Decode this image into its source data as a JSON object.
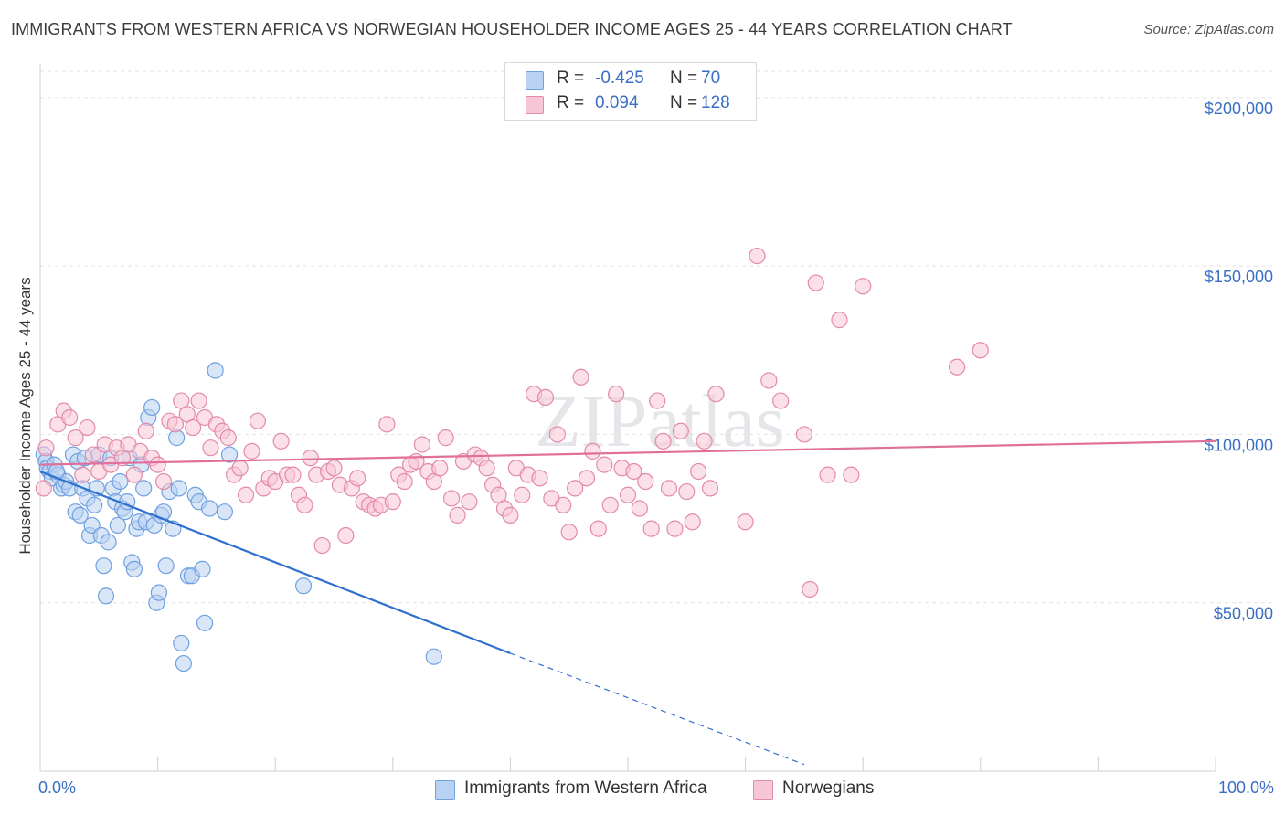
{
  "title": "IMMIGRANTS FROM WESTERN AFRICA VS NORWEGIAN HOUSEHOLDER INCOME AGES 25 - 44 YEARS CORRELATION CHART",
  "source": "Source: ZipAtlas.com",
  "watermark": "ZIPatlas",
  "colors": {
    "blue": "#6fa0e0",
    "blue_fill": "#b9d1f3",
    "blue_line": "#2f6fd0",
    "pink": "#e38aa8",
    "pink_fill": "#f7c6d6",
    "pink_line": "#e0709a",
    "tick_text": "#3a6fc4"
  },
  "legend": {
    "rows": [
      {
        "r_label": "R =",
        "r_value": "-0.425",
        "n_label": "N =",
        "n_value": "70"
      },
      {
        "r_label": "R =",
        "r_value": "0.094",
        "n_label": "N =",
        "n_value": "128"
      }
    ]
  },
  "chart_data": {
    "type": "scatter",
    "xlabel": "",
    "ylabel": "Householder Income Ages 25 - 44 years",
    "xlim": [
      0,
      100
    ],
    "ylim": [
      0,
      210000
    ],
    "x_tick_labels": [
      "0.0%",
      "100.0%"
    ],
    "y_ticks": [
      50000,
      100000,
      150000,
      200000
    ],
    "y_tick_labels": [
      "$50,000",
      "$100,000",
      "$150,000",
      "$200,000"
    ],
    "grid": true,
    "series": [
      {
        "name": "Immigrants from Western Africa",
        "color": "blue",
        "r": -0.425,
        "n": 70,
        "trend": {
          "x0": 0,
          "y0": 89000,
          "x1": 40,
          "y1": 35000,
          "dash_to_x": 65,
          "dash_to_y": 2000
        },
        "points": [
          [
            0.3,
            94000
          ],
          [
            0.5,
            92000
          ],
          [
            0.6,
            90000
          ],
          [
            0.8,
            89000
          ],
          [
            1.0,
            87000
          ],
          [
            1.2,
            91000
          ],
          [
            1.5,
            88000
          ],
          [
            1.8,
            84000
          ],
          [
            2.0,
            85000
          ],
          [
            2.2,
            86000
          ],
          [
            2.5,
            84000
          ],
          [
            2.8,
            94000
          ],
          [
            3.0,
            77000
          ],
          [
            3.2,
            92000
          ],
          [
            3.4,
            76000
          ],
          [
            3.6,
            84000
          ],
          [
            3.8,
            93000
          ],
          [
            4.0,
            81000
          ],
          [
            4.2,
            70000
          ],
          [
            4.4,
            73000
          ],
          [
            4.6,
            79000
          ],
          [
            4.8,
            84000
          ],
          [
            5.0,
            94000
          ],
          [
            5.2,
            70000
          ],
          [
            5.4,
            61000
          ],
          [
            5.6,
            52000
          ],
          [
            5.8,
            68000
          ],
          [
            6.0,
            93000
          ],
          [
            6.2,
            84000
          ],
          [
            6.4,
            80000
          ],
          [
            6.6,
            73000
          ],
          [
            6.8,
            86000
          ],
          [
            7.0,
            78000
          ],
          [
            7.2,
            77000
          ],
          [
            7.4,
            80000
          ],
          [
            7.6,
            93000
          ],
          [
            7.8,
            62000
          ],
          [
            8.0,
            60000
          ],
          [
            8.2,
            72000
          ],
          [
            8.4,
            74000
          ],
          [
            8.6,
            91000
          ],
          [
            8.8,
            84000
          ],
          [
            9.0,
            74000
          ],
          [
            9.2,
            105000
          ],
          [
            9.5,
            108000
          ],
          [
            9.7,
            73000
          ],
          [
            9.9,
            50000
          ],
          [
            10.1,
            53000
          ],
          [
            10.3,
            76000
          ],
          [
            10.5,
            77000
          ],
          [
            10.7,
            61000
          ],
          [
            11.0,
            83000
          ],
          [
            11.3,
            72000
          ],
          [
            11.6,
            99000
          ],
          [
            11.8,
            84000
          ],
          [
            12.0,
            38000
          ],
          [
            12.2,
            32000
          ],
          [
            12.6,
            58000
          ],
          [
            12.9,
            58000
          ],
          [
            13.2,
            82000
          ],
          [
            13.5,
            80000
          ],
          [
            13.8,
            60000
          ],
          [
            14.0,
            44000
          ],
          [
            14.4,
            78000
          ],
          [
            14.9,
            119000
          ],
          [
            15.7,
            77000
          ],
          [
            16.1,
            94000
          ],
          [
            22.4,
            55000
          ],
          [
            33.5,
            34000
          ],
          [
            1.4,
            89000
          ]
        ]
      },
      {
        "name": "Norwegians",
        "color": "pink",
        "r": 0.094,
        "n": 128,
        "trend": {
          "x0": 0,
          "y0": 91000,
          "x1": 100,
          "y1": 98000
        },
        "points": [
          [
            0.3,
            84000
          ],
          [
            0.5,
            96000
          ],
          [
            1.5,
            103000
          ],
          [
            2.0,
            107000
          ],
          [
            2.5,
            105000
          ],
          [
            3.0,
            99000
          ],
          [
            3.6,
            88000
          ],
          [
            4.0,
            102000
          ],
          [
            4.5,
            94000
          ],
          [
            5.0,
            89000
          ],
          [
            5.5,
            97000
          ],
          [
            6.0,
            91000
          ],
          [
            6.5,
            96000
          ],
          [
            7.0,
            93000
          ],
          [
            7.5,
            97000
          ],
          [
            8.0,
            88000
          ],
          [
            8.5,
            95000
          ],
          [
            9.0,
            101000
          ],
          [
            9.5,
            93000
          ],
          [
            10.0,
            91000
          ],
          [
            10.5,
            86000
          ],
          [
            11.0,
            104000
          ],
          [
            11.5,
            103000
          ],
          [
            12.0,
            110000
          ],
          [
            12.5,
            106000
          ],
          [
            13.0,
            102000
          ],
          [
            13.5,
            110000
          ],
          [
            14.0,
            105000
          ],
          [
            14.5,
            96000
          ],
          [
            15.0,
            103000
          ],
          [
            15.5,
            101000
          ],
          [
            16.0,
            99000
          ],
          [
            16.5,
            88000
          ],
          [
            17.0,
            90000
          ],
          [
            17.5,
            82000
          ],
          [
            18.0,
            95000
          ],
          [
            18.5,
            104000
          ],
          [
            19.0,
            84000
          ],
          [
            19.5,
            87000
          ],
          [
            20.0,
            86000
          ],
          [
            20.5,
            98000
          ],
          [
            21.0,
            88000
          ],
          [
            21.5,
            88000
          ],
          [
            22.0,
            82000
          ],
          [
            22.5,
            79000
          ],
          [
            23.0,
            93000
          ],
          [
            23.5,
            88000
          ],
          [
            24.0,
            67000
          ],
          [
            24.5,
            89000
          ],
          [
            25.0,
            90000
          ],
          [
            25.5,
            85000
          ],
          [
            26.0,
            70000
          ],
          [
            26.5,
            84000
          ],
          [
            27.0,
            87000
          ],
          [
            27.5,
            80000
          ],
          [
            28.0,
            79000
          ],
          [
            28.5,
            78000
          ],
          [
            29.0,
            79000
          ],
          [
            29.5,
            103000
          ],
          [
            30.0,
            80000
          ],
          [
            30.5,
            88000
          ],
          [
            31.0,
            86000
          ],
          [
            31.5,
            91000
          ],
          [
            32.0,
            92000
          ],
          [
            32.5,
            97000
          ],
          [
            33.0,
            89000
          ],
          [
            33.5,
            86000
          ],
          [
            34.0,
            90000
          ],
          [
            34.5,
            99000
          ],
          [
            35.0,
            81000
          ],
          [
            35.5,
            76000
          ],
          [
            36.0,
            92000
          ],
          [
            36.5,
            80000
          ],
          [
            37.0,
            94000
          ],
          [
            37.5,
            93000
          ],
          [
            38.0,
            90000
          ],
          [
            38.5,
            85000
          ],
          [
            39.0,
            82000
          ],
          [
            39.5,
            78000
          ],
          [
            40.0,
            76000
          ],
          [
            40.5,
            90000
          ],
          [
            41.0,
            82000
          ],
          [
            41.5,
            88000
          ],
          [
            42.0,
            112000
          ],
          [
            42.5,
            87000
          ],
          [
            43.0,
            111000
          ],
          [
            43.5,
            81000
          ],
          [
            44.0,
            100000
          ],
          [
            44.5,
            79000
          ],
          [
            45.0,
            71000
          ],
          [
            45.5,
            84000
          ],
          [
            46.0,
            117000
          ],
          [
            46.5,
            87000
          ],
          [
            47.0,
            95000
          ],
          [
            47.5,
            72000
          ],
          [
            48.0,
            91000
          ],
          [
            48.5,
            79000
          ],
          [
            49.0,
            112000
          ],
          [
            49.5,
            90000
          ],
          [
            50.0,
            82000
          ],
          [
            50.5,
            89000
          ],
          [
            51.0,
            78000
          ],
          [
            51.5,
            86000
          ],
          [
            52.0,
            72000
          ],
          [
            52.5,
            110000
          ],
          [
            53.0,
            98000
          ],
          [
            53.5,
            84000
          ],
          [
            54.0,
            72000
          ],
          [
            54.5,
            101000
          ],
          [
            55.0,
            83000
          ],
          [
            55.5,
            74000
          ],
          [
            56.0,
            89000
          ],
          [
            56.5,
            98000
          ],
          [
            57.0,
            84000
          ],
          [
            57.5,
            112000
          ],
          [
            60.0,
            74000
          ],
          [
            61.0,
            153000
          ],
          [
            62.0,
            116000
          ],
          [
            63.0,
            110000
          ],
          [
            65.0,
            100000
          ],
          [
            66.0,
            145000
          ],
          [
            67.0,
            88000
          ],
          [
            68.0,
            134000
          ],
          [
            69.0,
            88000
          ],
          [
            70.0,
            144000
          ],
          [
            78.0,
            120000
          ],
          [
            80.0,
            125000
          ],
          [
            65.5,
            54000
          ]
        ]
      }
    ]
  }
}
